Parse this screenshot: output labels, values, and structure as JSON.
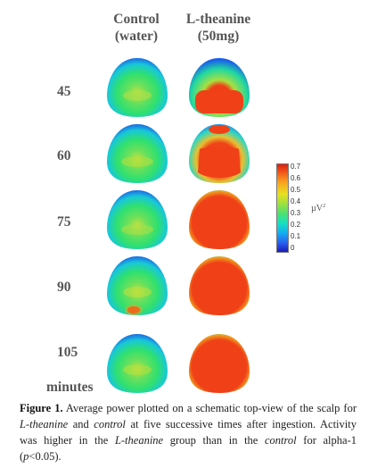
{
  "headers": {
    "control": [
      "Control",
      "(water)"
    ],
    "theanine": [
      "L-theanine",
      "(50mg)"
    ]
  },
  "times": [
    "45",
    "60",
    "75",
    "90",
    "105"
  ],
  "time_unit": "minutes",
  "colorbar": {
    "ticks": [
      "0.7",
      "0.6",
      "0.5",
      "0.4",
      "0.3",
      "0.2",
      "0.1",
      "0"
    ],
    "unit": "µV",
    "unit_exp": "2"
  },
  "caption": {
    "label": "Figure 1.",
    "p1": " Average power plotted on a schematic top-view of the scalp for ",
    "t1": "L-theanine",
    "p2": " and ",
    "t2": "control",
    "p3": " at five successive times after ingestion. Activity was higher in the ",
    "t3": "L-theanine",
    "p4": " group than in the ",
    "t4": "control",
    "p5": " for alpha-1 (",
    "t5": "p",
    "p6": "<0.05)."
  }
}
